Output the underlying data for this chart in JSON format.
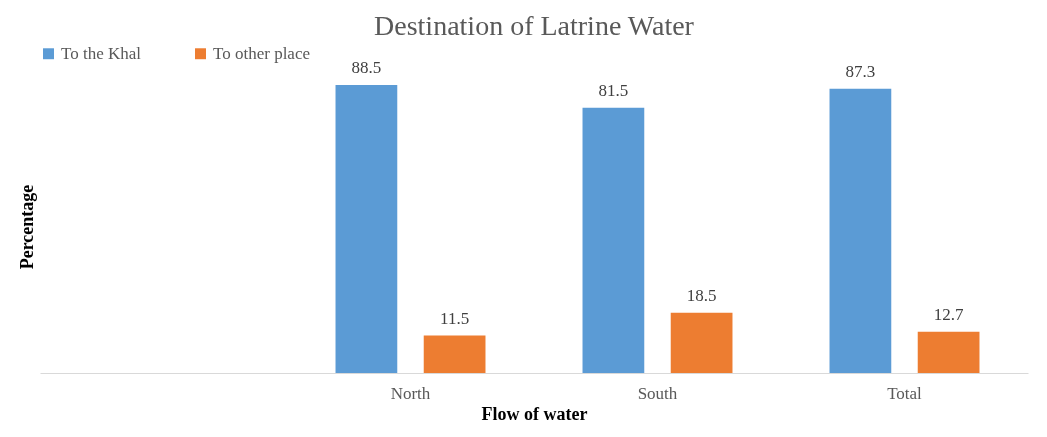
{
  "chart_data": {
    "type": "bar",
    "title": "Destination of Latrine Water",
    "xlabel": "Flow of water",
    "ylabel": "Percentage",
    "categories": [
      null,
      "North",
      "South",
      "Total"
    ],
    "series": [
      {
        "name": "To the Khal",
        "color": "#5b9bd5",
        "values": [
          null,
          88.5,
          81.5,
          87.3
        ]
      },
      {
        "name": "To other place",
        "color": "#ed7d31",
        "values": [
          null,
          11.5,
          18.5,
          12.7
        ]
      }
    ],
    "data_labels": true,
    "legend": "top left",
    "grid": false
  }
}
